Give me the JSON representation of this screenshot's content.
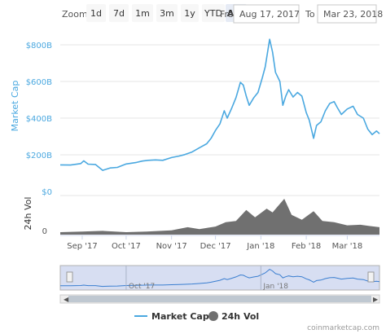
{
  "toolbar": {
    "zoom_label": "Zoom",
    "zoom_options": [
      "1d",
      "7d",
      "1m",
      "3m",
      "1y",
      "YTD",
      "ALL"
    ],
    "active_zoom": "ALL",
    "from_label": "From",
    "from_value": "Aug 17, 2017",
    "to_label": "To",
    "to_value": "Mar 23, 2018"
  },
  "credit": "coinmarketcap.com",
  "colors": {
    "market_cap": "#4aa8e0",
    "volume": "#707070",
    "navigator_fill": "#cdd6ef"
  },
  "chart_data": {
    "type": "line",
    "x_range": [
      "2017-08-17",
      "2018-03-23"
    ],
    "x_ticks": [
      "Sep '17",
      "Oct '17",
      "Nov '17",
      "Dec '17",
      "Jan '18",
      "Feb '18",
      "Mar '18"
    ],
    "navigator_ticks": [
      "Oct '17",
      "Jan '18"
    ],
    "panes": [
      {
        "name": "price",
        "ylabel": "Market Cap",
        "y_ticks": [
          "$0",
          "$200B",
          "$400B",
          "$600B",
          "$800B"
        ],
        "ylim": [
          0,
          800
        ],
        "unit": "billion USD"
      },
      {
        "name": "volume",
        "ylabel": "24h Vol",
        "y_ticks": [
          "0"
        ],
        "unit": "billion USD"
      }
    ],
    "series": [
      {
        "name": "Market Cap",
        "type": "line",
        "pane": "price",
        "points": [
          [
            "2017-08-17",
            145
          ],
          [
            "2017-08-24",
            144
          ],
          [
            "2017-08-31",
            152
          ],
          [
            "2017-09-02",
            167
          ],
          [
            "2017-09-05",
            149
          ],
          [
            "2017-09-10",
            147
          ],
          [
            "2017-09-15",
            115
          ],
          [
            "2017-09-20",
            128
          ],
          [
            "2017-09-25",
            131
          ],
          [
            "2017-10-01",
            150
          ],
          [
            "2017-10-08",
            158
          ],
          [
            "2017-10-12",
            166
          ],
          [
            "2017-10-16",
            170
          ],
          [
            "2017-10-21",
            172
          ],
          [
            "2017-10-26",
            170
          ],
          [
            "2017-11-01",
            185
          ],
          [
            "2017-11-06",
            193
          ],
          [
            "2017-11-10",
            201
          ],
          [
            "2017-11-15",
            215
          ],
          [
            "2017-11-20",
            238
          ],
          [
            "2017-11-25",
            260
          ],
          [
            "2017-11-28",
            290
          ],
          [
            "2017-12-01",
            333
          ],
          [
            "2017-12-04",
            368
          ],
          [
            "2017-12-07",
            440
          ],
          [
            "2017-12-09",
            400
          ],
          [
            "2017-12-12",
            453
          ],
          [
            "2017-12-15",
            512
          ],
          [
            "2017-12-18",
            595
          ],
          [
            "2017-12-20",
            580
          ],
          [
            "2017-12-22",
            520
          ],
          [
            "2017-12-24",
            470
          ],
          [
            "2017-12-27",
            510
          ],
          [
            "2017-12-30",
            540
          ],
          [
            "2018-01-02",
            620
          ],
          [
            "2018-01-04",
            680
          ],
          [
            "2018-01-05",
            730
          ],
          [
            "2018-01-07",
            830
          ],
          [
            "2018-01-09",
            760
          ],
          [
            "2018-01-11",
            650
          ],
          [
            "2018-01-14",
            600
          ],
          [
            "2018-01-16",
            470
          ],
          [
            "2018-01-18",
            520
          ],
          [
            "2018-01-20",
            555
          ],
          [
            "2018-01-23",
            515
          ],
          [
            "2018-01-26",
            540
          ],
          [
            "2018-01-29",
            520
          ],
          [
            "2018-02-01",
            430
          ],
          [
            "2018-02-03",
            390
          ],
          [
            "2018-02-06",
            290
          ],
          [
            "2018-02-08",
            360
          ],
          [
            "2018-02-11",
            380
          ],
          [
            "2018-02-14",
            440
          ],
          [
            "2018-02-17",
            480
          ],
          [
            "2018-02-20",
            490
          ],
          [
            "2018-02-22",
            460
          ],
          [
            "2018-02-25",
            420
          ],
          [
            "2018-03-01",
            450
          ],
          [
            "2018-03-05",
            465
          ],
          [
            "2018-03-08",
            420
          ],
          [
            "2018-03-12",
            400
          ],
          [
            "2018-03-15",
            340
          ],
          [
            "2018-03-18",
            310
          ],
          [
            "2018-03-21",
            330
          ],
          [
            "2018-03-23",
            315
          ]
        ]
      },
      {
        "name": "24h Vol",
        "type": "area",
        "pane": "volume",
        "points": [
          [
            "2017-08-17",
            4
          ],
          [
            "2017-09-01",
            5
          ],
          [
            "2017-09-15",
            6
          ],
          [
            "2017-10-01",
            4
          ],
          [
            "2017-10-15",
            5
          ],
          [
            "2017-11-01",
            7
          ],
          [
            "2017-11-12",
            12
          ],
          [
            "2017-11-20",
            9
          ],
          [
            "2017-12-01",
            13
          ],
          [
            "2017-12-08",
            20
          ],
          [
            "2017-12-15",
            22
          ],
          [
            "2017-12-22",
            40
          ],
          [
            "2017-12-28",
            28
          ],
          [
            "2018-01-05",
            42
          ],
          [
            "2018-01-09",
            36
          ],
          [
            "2018-01-17",
            58
          ],
          [
            "2018-01-22",
            32
          ],
          [
            "2018-01-29",
            24
          ],
          [
            "2018-02-06",
            38
          ],
          [
            "2018-02-12",
            22
          ],
          [
            "2018-02-20",
            20
          ],
          [
            "2018-03-01",
            15
          ],
          [
            "2018-03-10",
            16
          ],
          [
            "2018-03-16",
            14
          ],
          [
            "2018-03-23",
            12
          ]
        ]
      }
    ],
    "legend": {
      "position": "bottom-center",
      "entries": [
        "Market Cap",
        "24h Vol"
      ]
    },
    "grid": true
  }
}
